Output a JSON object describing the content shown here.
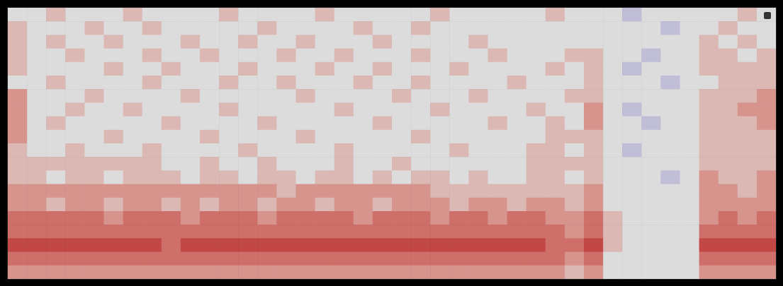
{
  "chart_data": {
    "type": "heatmap",
    "zlim": [
      0,
      10
    ],
    "tick_labels": false,
    "cells": [
      [
        5,
        5,
        6,
        5,
        5,
        5,
        6,
        5,
        5,
        5,
        5,
        6,
        5,
        5,
        5,
        5,
        6,
        5,
        5,
        5,
        5,
        5,
        6,
        5,
        5,
        5,
        5,
        5,
        6,
        5,
        5,
        5,
        4,
        5,
        5,
        5,
        5,
        5,
        6,
        5
      ],
      [
        6,
        5,
        5,
        5,
        6,
        5,
        5,
        6,
        5,
        5,
        5,
        5,
        5,
        6,
        5,
        5,
        5,
        5,
        6,
        5,
        5,
        6,
        5,
        5,
        5,
        5,
        5,
        5,
        5,
        5,
        5,
        5,
        5,
        5,
        4,
        5,
        5,
        6,
        5,
        5
      ],
      [
        6,
        5,
        6,
        5,
        5,
        6,
        5,
        5,
        5,
        6,
        5,
        5,
        6,
        5,
        5,
        6,
        5,
        5,
        5,
        6,
        5,
        5,
        5,
        5,
        6,
        5,
        5,
        5,
        5,
        5,
        5,
        5,
        5,
        5,
        5,
        5,
        6,
        5,
        6,
        5
      ],
      [
        6,
        5,
        5,
        6,
        5,
        5,
        5,
        6,
        5,
        5,
        6,
        5,
        5,
        5,
        6,
        5,
        5,
        6,
        5,
        5,
        5,
        6,
        5,
        5,
        5,
        6,
        5,
        5,
        5,
        6,
        6,
        5,
        5,
        4,
        5,
        5,
        6,
        6,
        5,
        6
      ],
      [
        6,
        5,
        5,
        5,
        5,
        6,
        5,
        5,
        6,
        5,
        5,
        5,
        6,
        5,
        5,
        5,
        6,
        5,
        5,
        6,
        5,
        5,
        5,
        6,
        5,
        5,
        5,
        5,
        6,
        5,
        6,
        5,
        4,
        5,
        5,
        5,
        6,
        6,
        6,
        6
      ],
      [
        5,
        5,
        6,
        5,
        5,
        5,
        5,
        6,
        5,
        5,
        5,
        6,
        5,
        5,
        6,
        5,
        5,
        5,
        6,
        5,
        5,
        6,
        5,
        5,
        5,
        5,
        6,
        5,
        5,
        5,
        6,
        5,
        5,
        5,
        4,
        5,
        5,
        6,
        6,
        6
      ],
      [
        7,
        5,
        5,
        5,
        6,
        5,
        5,
        5,
        5,
        6,
        5,
        5,
        5,
        5,
        5,
        6,
        5,
        5,
        5,
        5,
        6,
        5,
        5,
        5,
        6,
        5,
        5,
        5,
        5,
        6,
        6,
        5,
        5,
        5,
        5,
        5,
        6,
        6,
        6,
        7
      ],
      [
        7,
        5,
        5,
        6,
        5,
        5,
        6,
        5,
        5,
        5,
        5,
        6,
        5,
        5,
        5,
        5,
        5,
        6,
        5,
        5,
        5,
        5,
        6,
        5,
        5,
        5,
        5,
        6,
        5,
        5,
        7,
        5,
        4,
        5,
        5,
        5,
        6,
        6,
        7,
        7
      ],
      [
        7,
        5,
        6,
        5,
        5,
        5,
        5,
        5,
        6,
        5,
        5,
        5,
        5,
        6,
        5,
        5,
        5,
        5,
        5,
        6,
        5,
        5,
        5,
        5,
        5,
        6,
        5,
        5,
        6,
        5,
        7,
        5,
        5,
        4,
        5,
        5,
        6,
        6,
        6,
        7
      ],
      [
        7,
        5,
        5,
        5,
        5,
        6,
        5,
        5,
        5,
        5,
        6,
        5,
        5,
        5,
        5,
        6,
        5,
        5,
        5,
        5,
        5,
        6,
        5,
        5,
        5,
        5,
        5,
        5,
        6,
        6,
        6,
        5,
        5,
        5,
        5,
        5,
        6,
        6,
        6,
        6
      ],
      [
        6,
        5,
        5,
        6,
        5,
        5,
        5,
        6,
        5,
        5,
        5,
        5,
        6,
        5,
        5,
        5,
        5,
        6,
        5,
        5,
        5,
        5,
        5,
        6,
        5,
        5,
        5,
        6,
        6,
        5,
        6,
        5,
        4,
        5,
        5,
        5,
        6,
        6,
        6,
        6
      ],
      [
        6,
        6,
        6,
        6,
        6,
        6,
        6,
        6,
        5,
        5,
        6,
        5,
        5,
        6,
        5,
        5,
        5,
        6,
        5,
        5,
        6,
        5,
        5,
        5,
        5,
        5,
        5,
        6,
        6,
        6,
        6,
        5,
        5,
        5,
        5,
        5,
        6,
        6,
        6,
        6
      ],
      [
        6,
        6,
        5,
        6,
        6,
        5,
        6,
        6,
        6,
        5,
        6,
        6,
        5,
        6,
        6,
        5,
        6,
        6,
        5,
        6,
        5,
        6,
        6,
        5,
        6,
        5,
        5,
        6,
        6,
        5,
        6,
        5,
        5,
        5,
        4,
        5,
        7,
        6,
        6,
        7
      ],
      [
        7,
        7,
        7,
        7,
        7,
        7,
        7,
        7,
        7,
        7,
        7,
        7,
        7,
        7,
        6,
        7,
        7,
        7,
        7,
        7,
        7,
        7,
        6,
        6,
        6,
        6,
        6,
        6,
        6,
        6,
        7,
        5,
        5,
        5,
        5,
        5,
        7,
        7,
        6,
        7
      ],
      [
        7,
        7,
        6,
        7,
        7,
        6,
        7,
        7,
        6,
        7,
        6,
        7,
        7,
        6,
        7,
        7,
        6,
        7,
        7,
        6,
        7,
        7,
        7,
        6,
        7,
        7,
        6,
        7,
        7,
        6,
        7,
        5,
        5,
        5,
        5,
        5,
        7,
        7,
        7,
        7
      ],
      [
        8,
        8,
        8,
        8,
        8,
        7,
        8,
        8,
        8,
        7,
        8,
        8,
        8,
        7,
        8,
        8,
        8,
        8,
        7,
        8,
        8,
        8,
        7,
        8,
        8,
        7,
        8,
        8,
        7,
        7,
        8,
        6,
        5,
        5,
        5,
        5,
        7,
        8,
        7,
        8
      ],
      [
        8,
        8,
        8,
        8,
        8,
        8,
        8,
        8,
        8,
        8,
        8,
        8,
        8,
        8,
        8,
        8,
        8,
        8,
        8,
        8,
        8,
        8,
        8,
        8,
        8,
        8,
        8,
        8,
        8,
        7,
        8,
        6,
        5,
        5,
        5,
        5,
        8,
        8,
        8,
        8
      ],
      [
        9,
        9,
        9,
        9,
        9,
        9,
        9,
        9,
        8,
        9,
        9,
        9,
        9,
        9,
        9,
        9,
        9,
        9,
        9,
        9,
        9,
        9,
        9,
        9,
        9,
        9,
        9,
        9,
        8,
        8,
        9,
        6,
        5,
        5,
        5,
        5,
        9,
        9,
        9,
        9
      ],
      [
        8,
        8,
        8,
        8,
        8,
        8,
        8,
        8,
        8,
        8,
        8,
        8,
        8,
        8,
        8,
        8,
        8,
        8,
        8,
        8,
        8,
        8,
        8,
        8,
        8,
        8,
        8,
        8,
        8,
        7,
        8,
        5,
        5,
        5,
        5,
        5,
        8,
        8,
        8,
        8
      ],
      [
        7,
        7,
        7,
        7,
        7,
        7,
        7,
        7,
        7,
        7,
        7,
        7,
        7,
        7,
        7,
        7,
        7,
        7,
        7,
        7,
        7,
        7,
        7,
        7,
        7,
        7,
        7,
        7,
        7,
        6,
        7,
        5,
        5,
        5,
        5,
        5,
        7,
        7,
        7,
        7
      ]
    ]
  }
}
